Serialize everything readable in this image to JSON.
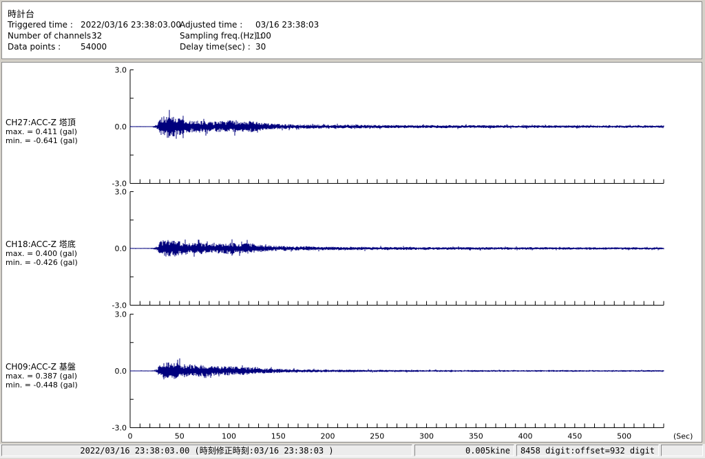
{
  "header": {
    "title": "時計台",
    "fields": [
      {
        "label": "Triggered time :",
        "value": "2022/03/16 23:38:03.00"
      },
      {
        "label": "Adjusted time :",
        "value": "03/16 23:38:03"
      },
      {
        "label": "Number of channels :",
        "value": "32"
      },
      {
        "label": "Sampling freq.(Hz) :",
        "value": "100"
      },
      {
        "label": "Data points :",
        "value": "54000"
      },
      {
        "label": "Delay time(sec) :",
        "value": "30"
      }
    ]
  },
  "status_bar": {
    "datetime": "2022/03/16 23:38:03.00  (時刻修正時刻:03/16 23:38:03  )",
    "kine": "0.005kine",
    "digit": "8458 digit:offset=932 digit"
  },
  "chart_data": {
    "type": "line",
    "subtype": "seismogram-3-channel",
    "xlabel": "(Sec)",
    "x_range": [
      0,
      540
    ],
    "x_tick_step": 10,
    "x_label_step": 50,
    "x_labels": [
      "0",
      "50",
      "100",
      "150",
      "200",
      "250",
      "300",
      "350",
      "400",
      "450",
      "500"
    ],
    "y_range": [
      -3.0,
      3.0
    ],
    "y_unit": "gal",
    "y_ticks": [
      3.0,
      1.5,
      0.0,
      -1.5,
      -3.0
    ],
    "y_tick_labels": [
      {
        "v": 3.0,
        "label": "3.0"
      },
      {
        "v": 0.0,
        "label": "0.0"
      },
      {
        "v": -3.0,
        "label": "-3.0"
      }
    ],
    "trace_color": "#00007d",
    "axis_color": "#000000",
    "channels": [
      {
        "name": "CH27:ACC-Z 塔頂",
        "max": 0.411,
        "min": -0.641,
        "max_text": "max. = 0.411 (gal)",
        "min_text": "min. = -0.641 (gal)",
        "seed": 27,
        "envelope": [
          [
            0,
            0.02
          ],
          [
            22,
            0.02
          ],
          [
            27,
            0.1
          ],
          [
            31,
            0.42
          ],
          [
            36,
            0.55
          ],
          [
            44,
            0.5
          ],
          [
            52,
            0.38
          ],
          [
            62,
            0.27
          ],
          [
            72,
            0.3
          ],
          [
            82,
            0.24
          ],
          [
            92,
            0.27
          ],
          [
            102,
            0.3
          ],
          [
            112,
            0.24
          ],
          [
            122,
            0.28
          ],
          [
            132,
            0.2
          ],
          [
            145,
            0.14
          ],
          [
            165,
            0.11
          ],
          [
            200,
            0.09
          ],
          [
            260,
            0.08
          ],
          [
            330,
            0.07
          ],
          [
            420,
            0.065
          ],
          [
            540,
            0.06
          ]
        ],
        "spikes": [
          {
            "t": 47,
            "v": -0.641
          },
          {
            "t": 38,
            "v": 0.411
          }
        ]
      },
      {
        "name": "CH18:ACC-Z 塔底",
        "max": 0.4,
        "min": -0.426,
        "max_text": "max. = 0.400 (gal)",
        "min_text": "min. = -0.426 (gal)",
        "seed": 18,
        "envelope": [
          [
            0,
            0.02
          ],
          [
            22,
            0.02
          ],
          [
            27,
            0.1
          ],
          [
            31,
            0.38
          ],
          [
            36,
            0.42
          ],
          [
            44,
            0.4
          ],
          [
            52,
            0.34
          ],
          [
            62,
            0.26
          ],
          [
            72,
            0.28
          ],
          [
            82,
            0.23
          ],
          [
            92,
            0.26
          ],
          [
            102,
            0.28
          ],
          [
            112,
            0.23
          ],
          [
            122,
            0.26
          ],
          [
            132,
            0.18
          ],
          [
            145,
            0.13
          ],
          [
            165,
            0.1
          ],
          [
            200,
            0.085
          ],
          [
            260,
            0.075
          ],
          [
            330,
            0.065
          ],
          [
            420,
            0.06
          ],
          [
            540,
            0.055
          ]
        ],
        "spikes": [
          {
            "t": 36,
            "v": -0.426
          },
          {
            "t": 44,
            "v": 0.4
          }
        ]
      },
      {
        "name": "CH09:ACC-Z 基盤",
        "max": 0.387,
        "min": -0.448,
        "max_text": "max. = 0.387 (gal)",
        "min_text": "min. = -0.448 (gal)",
        "seed": 9,
        "envelope": [
          [
            0,
            0.02
          ],
          [
            22,
            0.02
          ],
          [
            27,
            0.1
          ],
          [
            31,
            0.36
          ],
          [
            36,
            0.42
          ],
          [
            44,
            0.4
          ],
          [
            50,
            0.36
          ],
          [
            60,
            0.3
          ],
          [
            70,
            0.3
          ],
          [
            80,
            0.26
          ],
          [
            90,
            0.24
          ],
          [
            100,
            0.22
          ],
          [
            110,
            0.2
          ],
          [
            122,
            0.18
          ],
          [
            132,
            0.14
          ],
          [
            145,
            0.11
          ],
          [
            165,
            0.08
          ],
          [
            200,
            0.06
          ],
          [
            260,
            0.05
          ],
          [
            330,
            0.045
          ],
          [
            420,
            0.04
          ],
          [
            540,
            0.04
          ]
        ],
        "spikes": [
          {
            "t": 34,
            "v": -0.448
          },
          {
            "t": 42,
            "v": 0.387
          }
        ]
      }
    ]
  }
}
